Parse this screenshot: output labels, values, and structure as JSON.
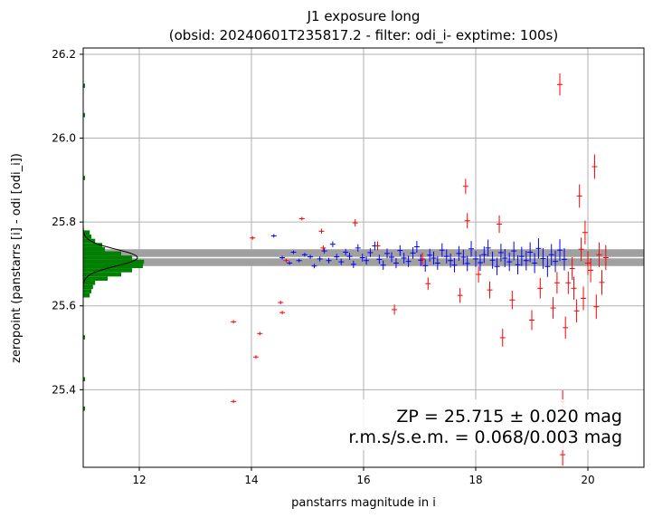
{
  "chart_data": {
    "type": "scatter",
    "title": "J1 exposure long",
    "subtitle": "(obsid: 20240601T235817.2 - filter: odi_i- exptime: 100s)",
    "xlabel": "panstarrs magnitude in i",
    "ylabel": "zeropoint (panstarrs [i] - odi [odi_i])",
    "xlim": [
      11.0,
      21.0
    ],
    "ylim": [
      25.215,
      26.215
    ],
    "xticks": [
      "12",
      "14",
      "16",
      "18",
      "20"
    ],
    "yticks": [
      "25.4",
      "25.6",
      "25.8",
      "26.0",
      "26.2"
    ],
    "grid": true,
    "zeropoint": 25.715,
    "zeropoint_err": 0.02,
    "annotation": {
      "line1": "ZP = 25.715 ± 0.020 mag",
      "line2": "r.m.s/s.e.m. = 0.068/0.003 mag"
    },
    "colors": {
      "used": "#0000ff",
      "rejected": "#ff0000",
      "hist": "#008000",
      "band": "#a0a0a0"
    },
    "histogram": {
      "bin_width": 0.01,
      "bins": [
        {
          "y": 25.62,
          "count": 0.12
        },
        {
          "y": 25.63,
          "count": 0.15
        },
        {
          "y": 25.64,
          "count": 0.18
        },
        {
          "y": 25.65,
          "count": 0.22
        },
        {
          "y": 25.66,
          "count": 0.45
        },
        {
          "y": 25.67,
          "count": 0.7
        },
        {
          "y": 25.68,
          "count": 0.9
        },
        {
          "y": 25.69,
          "count": 1.1
        },
        {
          "y": 25.7,
          "count": 1.12
        },
        {
          "y": 25.71,
          "count": 0.9
        },
        {
          "y": 25.72,
          "count": 0.7
        },
        {
          "y": 25.73,
          "count": 0.4
        },
        {
          "y": 25.74,
          "count": 0.35
        },
        {
          "y": 25.75,
          "count": 0.22
        },
        {
          "y": 25.76,
          "count": 0.15
        },
        {
          "y": 25.77,
          "count": 0.12
        }
      ],
      "gauss_peak": 1.0,
      "gauss_sigma": 0.02
    },
    "series": [
      {
        "name": "used",
        "points": [
          [
            14.4,
            25.767
          ],
          [
            14.55,
            25.715
          ],
          [
            14.68,
            25.702
          ],
          [
            14.75,
            25.728
          ],
          [
            14.85,
            25.708
          ],
          [
            14.95,
            25.722
          ],
          [
            15.05,
            25.717
          ],
          [
            15.12,
            25.695
          ],
          [
            15.22,
            25.712
          ],
          [
            15.3,
            25.731
          ],
          [
            15.38,
            25.708
          ],
          [
            15.45,
            25.747
          ],
          [
            15.52,
            25.717
          ],
          [
            15.6,
            25.705
          ],
          [
            15.68,
            25.728
          ],
          [
            15.75,
            25.718
          ],
          [
            15.82,
            25.699
          ],
          [
            15.9,
            25.738
          ],
          [
            15.98,
            25.715
          ],
          [
            16.05,
            25.708
          ],
          [
            16.12,
            25.727
          ],
          [
            16.2,
            25.743
          ],
          [
            16.28,
            25.711
          ],
          [
            16.35,
            25.697
          ],
          [
            16.42,
            25.725
          ],
          [
            16.5,
            25.716
          ],
          [
            16.58,
            25.702
          ],
          [
            16.65,
            25.732
          ],
          [
            16.72,
            25.714
          ],
          [
            16.8,
            25.706
          ],
          [
            16.88,
            25.726
          ],
          [
            16.95,
            25.741
          ],
          [
            17.02,
            25.709
          ],
          [
            17.1,
            25.696
          ],
          [
            17.18,
            25.721
          ],
          [
            17.25,
            25.714
          ],
          [
            17.32,
            25.702
          ],
          [
            17.4,
            25.733
          ],
          [
            17.48,
            25.718
          ],
          [
            17.55,
            25.708
          ],
          [
            17.62,
            25.697
          ],
          [
            17.7,
            25.725
          ],
          [
            17.78,
            25.716
          ],
          [
            17.85,
            25.701
          ],
          [
            17.92,
            25.736
          ],
          [
            18.0,
            25.712
          ],
          [
            18.08,
            25.703
          ],
          [
            18.15,
            25.722
          ],
          [
            18.22,
            25.738
          ],
          [
            18.3,
            25.709
          ],
          [
            18.38,
            25.694
          ],
          [
            18.45,
            25.727
          ],
          [
            18.52,
            25.714
          ],
          [
            18.6,
            25.705
          ],
          [
            18.68,
            25.731
          ],
          [
            18.75,
            25.698
          ],
          [
            18.82,
            25.718
          ],
          [
            18.9,
            25.708
          ],
          [
            18.97,
            25.728
          ],
          [
            19.05,
            25.702
          ],
          [
            19.12,
            25.737
          ],
          [
            19.2,
            25.713
          ],
          [
            19.28,
            25.694
          ],
          [
            19.35,
            25.722
          ],
          [
            19.42,
            25.706
          ],
          [
            19.5,
            25.733
          ],
          [
            19.58,
            25.711
          ]
        ]
      },
      {
        "name": "rejected",
        "points": [
          [
            13.68,
            25.562
          ],
          [
            13.68,
            25.372
          ],
          [
            14.02,
            25.762
          ],
          [
            14.08,
            25.478
          ],
          [
            14.15,
            25.534
          ],
          [
            14.52,
            25.608
          ],
          [
            14.55,
            25.584
          ],
          [
            14.62,
            25.708
          ],
          [
            14.9,
            25.808
          ],
          [
            15.25,
            25.778
          ],
          [
            15.28,
            25.738
          ],
          [
            15.85,
            25.798
          ],
          [
            16.25,
            25.743
          ],
          [
            16.55,
            25.591
          ],
          [
            17.05,
            25.712
          ],
          [
            17.15,
            25.653
          ],
          [
            17.72,
            25.625
          ],
          [
            17.82,
            25.885
          ],
          [
            17.85,
            25.803
          ],
          [
            18.05,
            25.675
          ],
          [
            18.25,
            25.638
          ],
          [
            18.42,
            25.795
          ],
          [
            18.48,
            25.524
          ],
          [
            18.65,
            25.614
          ],
          [
            19.0,
            25.566
          ],
          [
            19.15,
            25.642
          ],
          [
            19.38,
            25.595
          ],
          [
            19.45,
            25.655
          ],
          [
            19.5,
            26.128
          ],
          [
            19.55,
            25.372
          ],
          [
            19.55,
            25.245
          ],
          [
            19.6,
            25.548
          ],
          [
            19.65,
            25.655
          ],
          [
            19.72,
            25.689
          ],
          [
            19.75,
            25.642
          ],
          [
            19.8,
            25.588
          ],
          [
            19.85,
            25.862
          ],
          [
            19.88,
            25.735
          ],
          [
            19.92,
            25.618
          ],
          [
            19.95,
            25.775
          ],
          [
            20.0,
            25.702
          ],
          [
            20.05,
            25.685
          ],
          [
            20.12,
            25.932
          ],
          [
            20.15,
            25.598
          ],
          [
            20.2,
            25.722
          ],
          [
            20.25,
            25.656
          ],
          [
            20.32,
            25.715
          ]
        ]
      }
    ]
  }
}
